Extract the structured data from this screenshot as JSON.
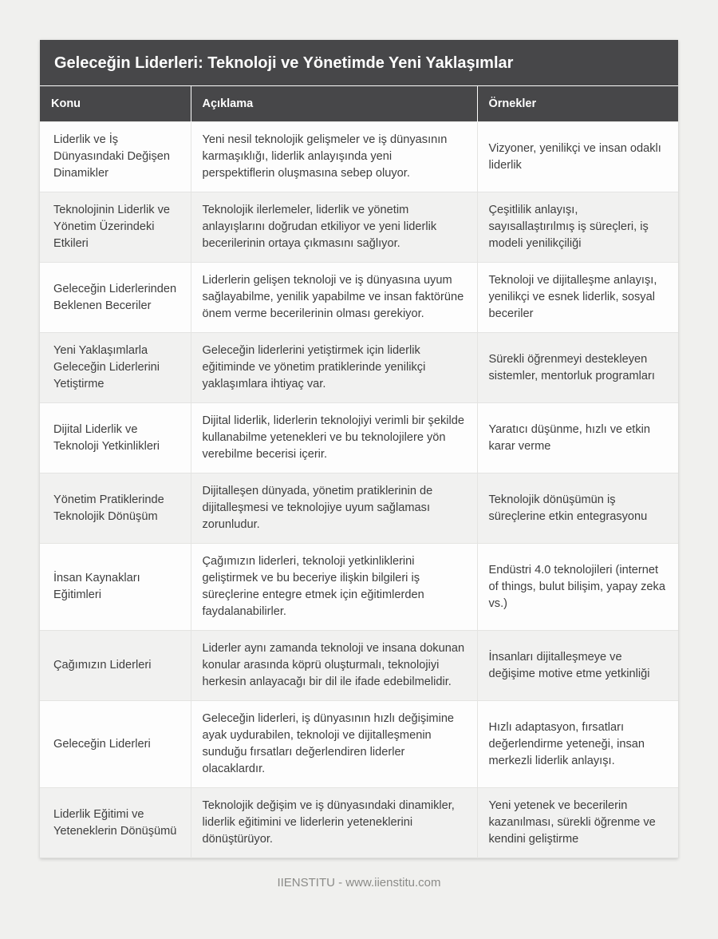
{
  "header": {
    "title": "Geleceğin Liderleri: Teknoloji ve Yönetimde Yeni Yaklaşımlar"
  },
  "table": {
    "columns": [
      "Konu",
      "Açıklama",
      "Örnekler"
    ],
    "rows": [
      {
        "konu": "Liderlik ve İş Dünyasındaki Değişen Dinamikler",
        "aciklama": "Yeni nesil teknolojik gelişmeler ve iş dünyasının karmaşıklığı, liderlik anlayışında yeni perspektiflerin oluşmasına sebep oluyor.",
        "ornekler": "Vizyoner, yenilikçi ve insan odaklı liderlik"
      },
      {
        "konu": "Teknolojinin Liderlik ve Yönetim Üzerindeki Etkileri",
        "aciklama": "Teknolojik ilerlemeler, liderlik ve yönetim anlayışlarını doğrudan etkiliyor ve yeni liderlik becerilerinin ortaya çıkmasını sağlıyor.",
        "ornekler": "Çeşitlilik anlayışı, sayısallaştırılmış iş süreçleri, iş modeli yenilikçiliği"
      },
      {
        "konu": "Geleceğin Liderlerinden Beklenen Beceriler",
        "aciklama": "Liderlerin gelişen teknoloji ve iş dünyasına uyum sağlayabilme, yenilik yapabilme ve insan faktörüne önem verme becerilerinin olması gerekiyor.",
        "ornekler": "Teknoloji ve dijitalleşme anlayışı, yenilikçi ve esnek liderlik, sosyal beceriler"
      },
      {
        "konu": "Yeni Yaklaşımlarla Geleceğin Liderlerini Yetiştirme",
        "aciklama": "Geleceğin liderlerini yetiştirmek için liderlik eğitiminde ve yönetim pratiklerinde yenilikçi yaklaşımlara ihtiyaç var.",
        "ornekler": "Sürekli öğrenmeyi destekleyen sistemler, mentorluk programları"
      },
      {
        "konu": "Dijital Liderlik ve Teknoloji Yetkinlikleri",
        "aciklama": "Dijital liderlik, liderlerin teknolojiyi verimli bir şekilde kullanabilme yetenekleri ve bu teknolojilere yön verebilme becerisi içerir.",
        "ornekler": "Yaratıcı düşünme, hızlı ve etkin karar verme"
      },
      {
        "konu": "Yönetim Pratiklerinde Teknolojik Dönüşüm",
        "aciklama": "Dijitalleşen dünyada, yönetim pratiklerinin de dijitalleşmesi ve teknolojiye uyum sağlaması zorunludur.",
        "ornekler": "Teknolojik dönüşümün iş süreçlerine etkin entegrasyonu"
      },
      {
        "konu": "İnsan Kaynakları Eğitimleri",
        "aciklama": "Çağımızın liderleri, teknoloji yetkinliklerini geliştirmek ve bu beceriye ilişkin bilgileri iş süreçlerine entegre etmek için eğitimlerden faydalanabilirler.",
        "ornekler": "Endüstri 4.0 teknolojileri (internet of things, bulut bilişim, yapay zeka vs.)"
      },
      {
        "konu": "Çağımızın Liderleri",
        "aciklama": "Liderler aynı zamanda teknoloji ve insana dokunan konular arasında köprü oluşturmalı, teknolojiyi herkesin anlayacağı bir dil ile ifade edebilmelidir.",
        "ornekler": "İnsanları dijitalleşmeye ve değişime motive etme yetkinliği"
      },
      {
        "konu": "Geleceğin Liderleri",
        "aciklama": "Geleceğin liderleri, iş dünyasının hızlı değişimine ayak uydurabilen, teknoloji ve dijitalleşmenin sunduğu fırsatları değerlendiren liderler olacaklardır.",
        "ornekler": "Hızlı adaptasyon, fırsatları değerlendirme yeteneği, insan merkezli liderlik anlayışı."
      },
      {
        "konu": "Liderlik Eğitimi ve Yeteneklerin Dönüşümü",
        "aciklama": "Teknolojik değişim ve iş dünyasındaki dinamikler, liderlik eğitimini ve liderlerin yeteneklerini dönüştürüyor.",
        "ornekler": "Yeni yetenek ve becerilerin kazanılması, sürekli öğrenme ve kendini geliştirme"
      }
    ]
  },
  "footer": {
    "text": "IIENSTITU - www.iienstitu.com"
  },
  "colors": {
    "header_bg": "#474749",
    "page_bg": "#f0f0ee",
    "row_bg": "#fdfdfd",
    "row_alt_bg": "#f1f1f0",
    "border": "#e4e4e2",
    "header_text": "#ffffff",
    "body_text": "#3e3e3e",
    "footer_text": "#8b8b88"
  }
}
